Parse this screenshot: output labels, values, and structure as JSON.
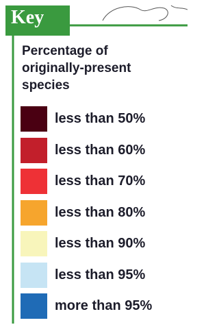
{
  "key": {
    "title": "Key",
    "heading": [
      "Percentage of",
      "originally-present",
      "species"
    ],
    "items": [
      {
        "label": "less than 50%",
        "color": "#4a0012"
      },
      {
        "label": "less than 60%",
        "color": "#c21f2b"
      },
      {
        "label": "less than 70%",
        "color": "#ee3136"
      },
      {
        "label": "less than 80%",
        "color": "#f6a52d"
      },
      {
        "label": "less than 90%",
        "color": "#f8f5bb"
      },
      {
        "label": "less than 95%",
        "color": "#c6e4f4"
      },
      {
        "label": "more than 95%",
        "color": "#1f6bb6"
      }
    ]
  }
}
